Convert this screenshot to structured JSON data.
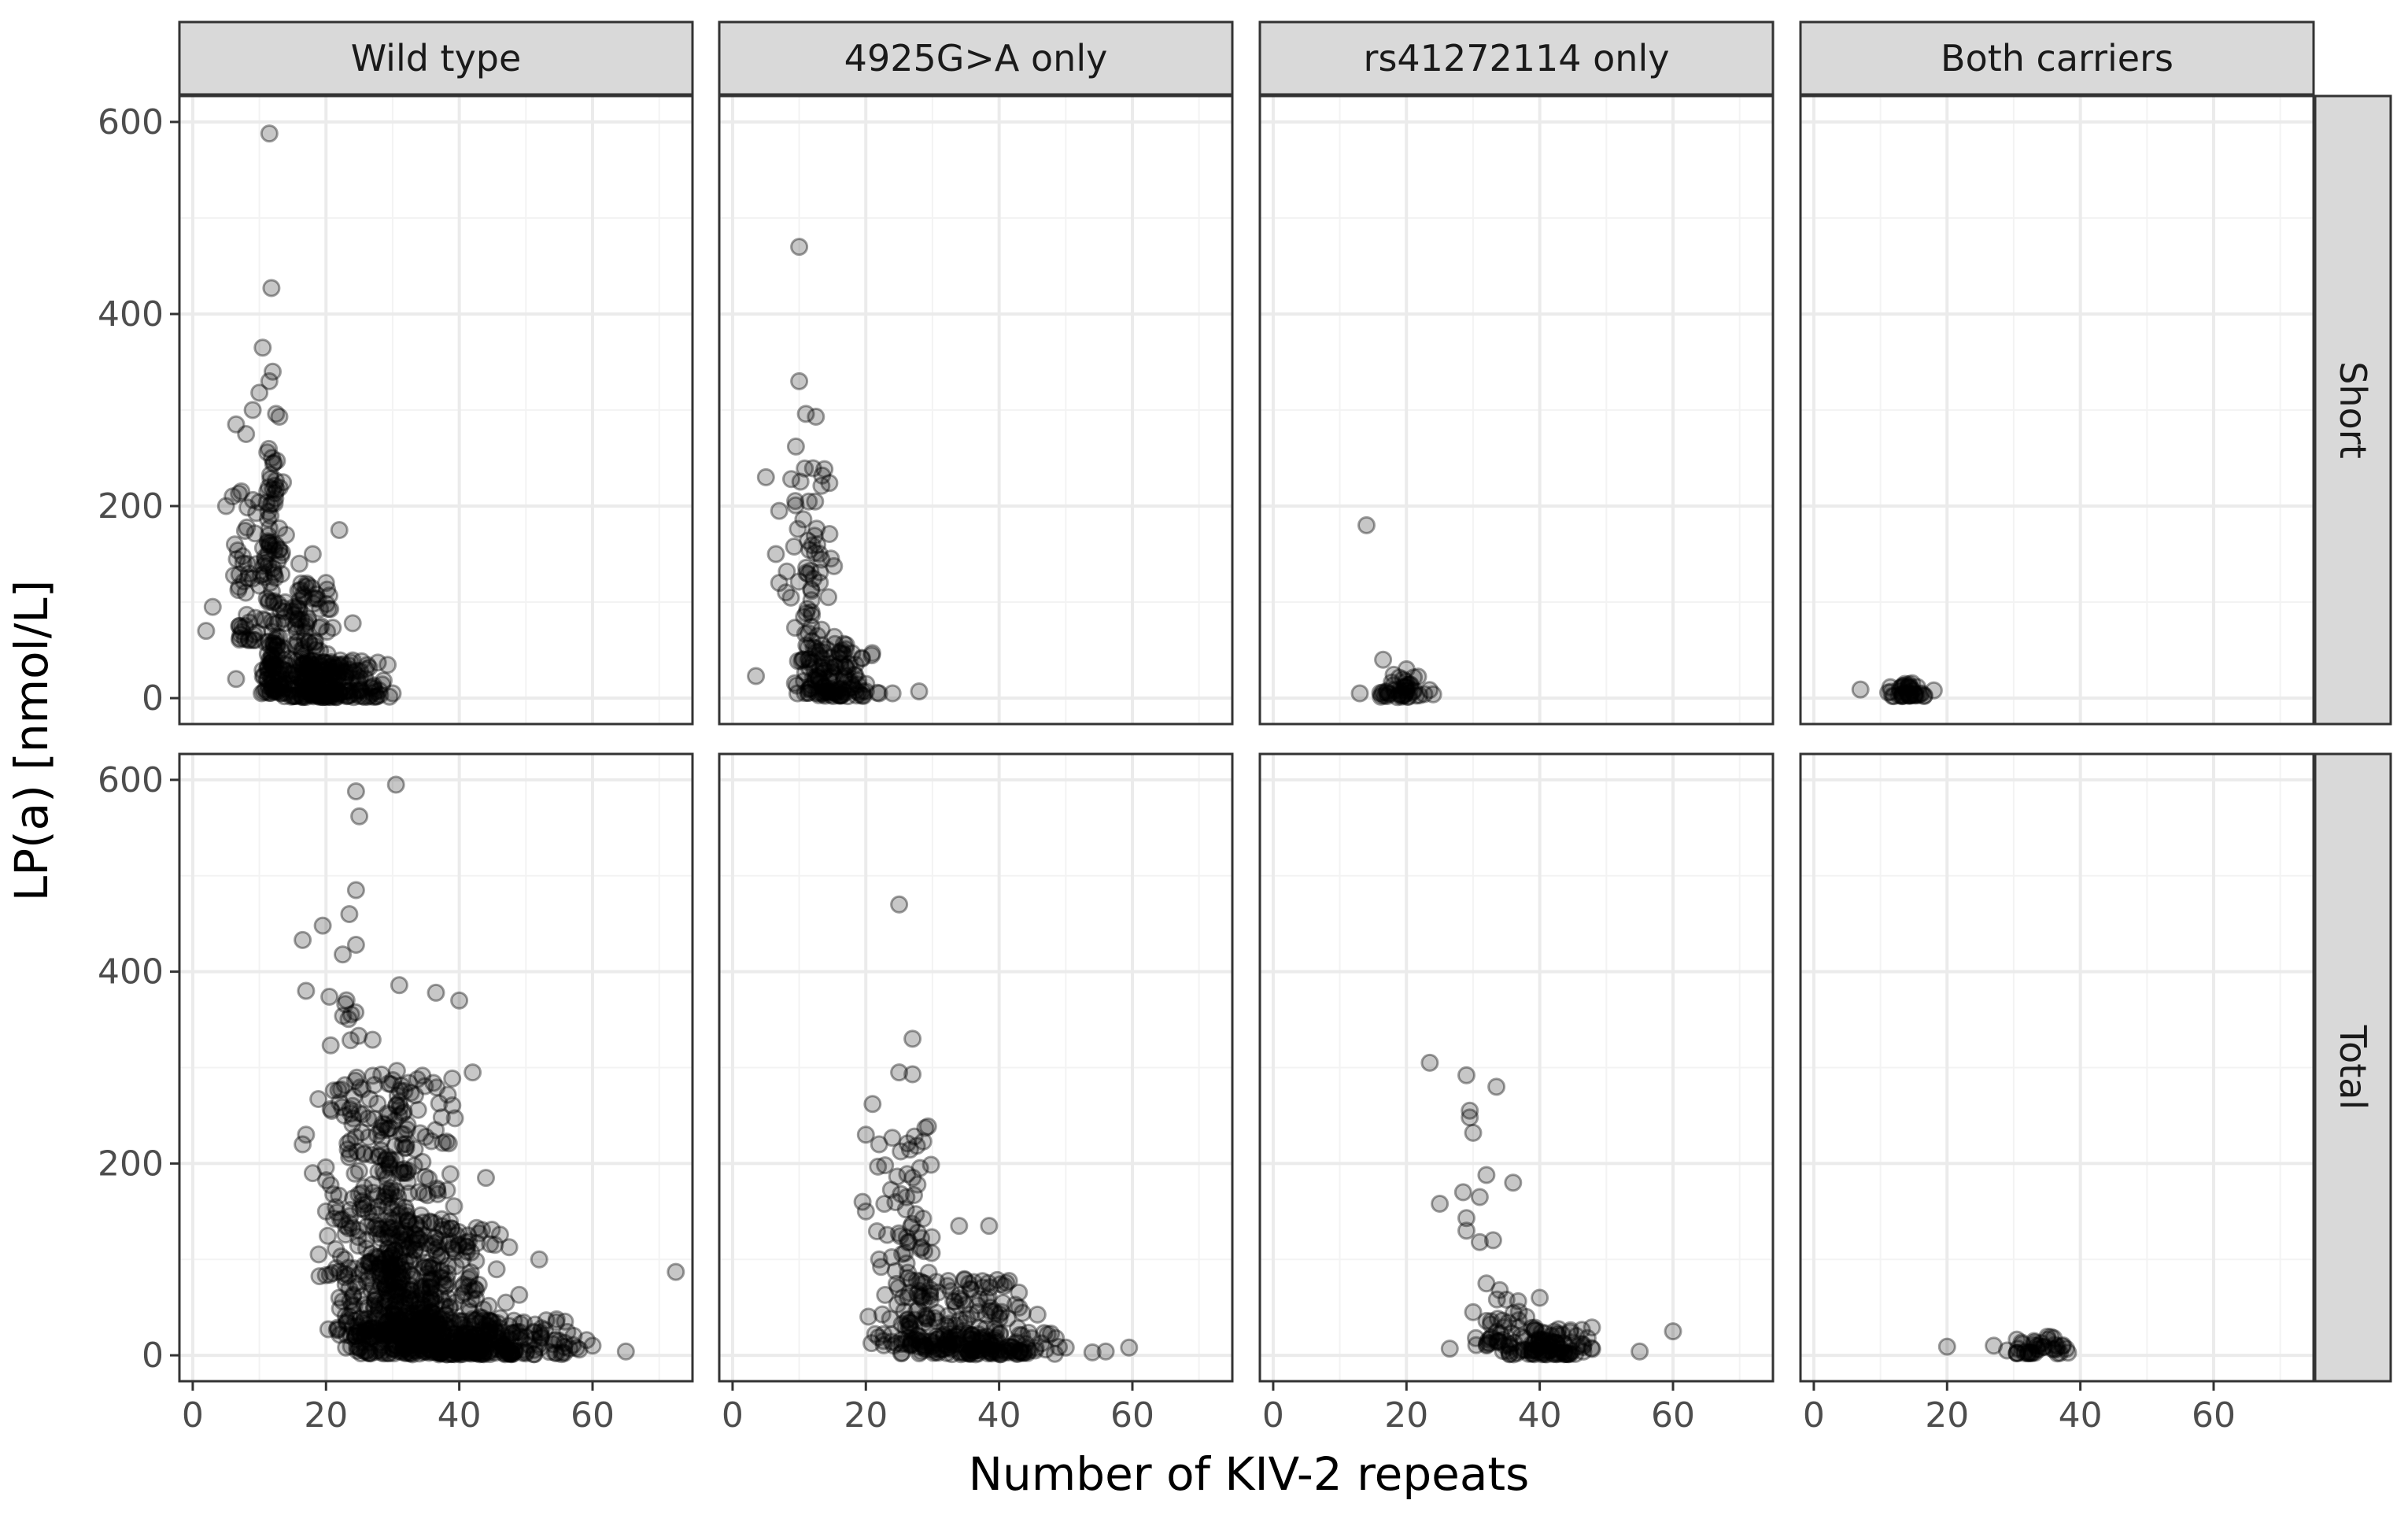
{
  "chart_data": {
    "type": "scatter",
    "xlabel": "Number of KIV-2 repeats",
    "ylabel": "LP(a) [nmol/L]",
    "xlim": [
      -2,
      75
    ],
    "ylim": [
      -27,
      627
    ],
    "x_ticks": [
      0,
      20,
      40,
      60
    ],
    "y_ticks": [
      0,
      200,
      400,
      600
    ],
    "x_tick_labels": [
      "0",
      "20",
      "40",
      "60"
    ],
    "y_tick_labels": [
      "0",
      "200",
      "400",
      "600"
    ],
    "grid": true,
    "point_color": "#000000",
    "point_alpha": 0.25,
    "columns": [
      "Wild type",
      "4925G>A only",
      "rs41272114 only",
      "Both carriers"
    ],
    "rows": [
      "Short",
      "Total"
    ],
    "panels": [
      {
        "column": "Wild type",
        "row": "Short",
        "highlights": [
          [
            11.5,
            588
          ],
          [
            11.8,
            427
          ],
          [
            10.5,
            365
          ],
          [
            12,
            340
          ],
          [
            11.5,
            330
          ],
          [
            6.5,
            285
          ],
          [
            9,
            300
          ],
          [
            10,
            318
          ],
          [
            12.5,
            296
          ],
          [
            13,
            293
          ],
          [
            8,
            275
          ],
          [
            6,
            210
          ],
          [
            5,
            200
          ],
          [
            3,
            95
          ],
          [
            2,
            70
          ],
          [
            6.5,
            20
          ],
          [
            22,
            175
          ],
          [
            18,
            150
          ],
          [
            20,
            120
          ],
          [
            14,
            170
          ],
          [
            16,
            140
          ],
          [
            24,
            78
          ],
          [
            26,
            30
          ],
          [
            28,
            8
          ],
          [
            30,
            5
          ],
          [
            27,
            5
          ]
        ],
        "clusters": [
          {
            "x": [
              10,
              14
            ],
            "y": [
              5,
              260
            ],
            "n": 140
          },
          {
            "x": [
              5,
              11
            ],
            "y": [
              60,
              220
            ],
            "n": 45
          },
          {
            "x": [
              12,
              22
            ],
            "y": [
              2,
              120
            ],
            "n": 150
          },
          {
            "x": [
              14,
              30
            ],
            "y": [
              1,
              40
            ],
            "n": 150
          }
        ]
      },
      {
        "column": "4925G>A only",
        "row": "Short",
        "highlights": [
          [
            10,
            470
          ],
          [
            10,
            330
          ],
          [
            11,
            296
          ],
          [
            12.5,
            293
          ],
          [
            9.5,
            262
          ],
          [
            5,
            230
          ],
          [
            7,
            195
          ],
          [
            6.5,
            150
          ],
          [
            7,
            120
          ],
          [
            8,
            110
          ],
          [
            3.5,
            23
          ],
          [
            22,
            5
          ],
          [
            24,
            5
          ],
          [
            28,
            7
          ],
          [
            20,
            7
          ]
        ],
        "clusters": [
          {
            "x": [
              8,
              16
            ],
            "y": [
              5,
              240
            ],
            "n": 95
          },
          {
            "x": [
              10,
              22
            ],
            "y": [
              2,
              60
            ],
            "n": 90
          }
        ]
      },
      {
        "column": "rs41272114 only",
        "row": "Short",
        "highlights": [
          [
            14,
            180
          ],
          [
            16.5,
            40
          ],
          [
            20,
            30
          ],
          [
            13,
            5
          ],
          [
            24,
            4
          ]
        ],
        "clusters": [
          {
            "x": [
              15,
              24
            ],
            "y": [
              1,
              25
            ],
            "n": 45
          }
        ]
      },
      {
        "column": "Both carriers",
        "row": "Short",
        "highlights": [
          [
            7,
            9
          ],
          [
            18,
            8
          ]
        ],
        "clusters": [
          {
            "x": [
              11,
              17
            ],
            "y": [
              2,
              20
            ],
            "n": 40
          }
        ]
      },
      {
        "column": "Wild type",
        "row": "Total",
        "highlights": [
          [
            24.5,
            588
          ],
          [
            30.5,
            595
          ],
          [
            25,
            562
          ],
          [
            24.5,
            485
          ],
          [
            23.5,
            460
          ],
          [
            19.5,
            448
          ],
          [
            16.5,
            433
          ],
          [
            24.5,
            428
          ],
          [
            22.5,
            418
          ],
          [
            31,
            386
          ],
          [
            36.5,
            378
          ],
          [
            17,
            380
          ],
          [
            16.5,
            220
          ],
          [
            17,
            230
          ],
          [
            18,
            190
          ],
          [
            20,
            150
          ],
          [
            22,
            60
          ],
          [
            23,
            8
          ],
          [
            72.5,
            87
          ],
          [
            65,
            4
          ],
          [
            52,
            100
          ],
          [
            49,
            63
          ],
          [
            47,
            55
          ],
          [
            44,
            185
          ],
          [
            42,
            295
          ],
          [
            45,
            35
          ],
          [
            55,
            15
          ],
          [
            60,
            10
          ],
          [
            58,
            6
          ],
          [
            40,
            370
          ]
        ],
        "clusters": [
          {
            "x": [
              20,
              40
            ],
            "y": [
              20,
              300
            ],
            "n": 420
          },
          {
            "x": [
              22,
              48
            ],
            "y": [
              2,
              140
            ],
            "n": 380
          },
          {
            "x": [
              28,
              60
            ],
            "y": [
              1,
              40
            ],
            "n": 220
          },
          {
            "x": [
              17,
              30
            ],
            "y": [
              80,
              380
            ],
            "n": 70
          }
        ]
      },
      {
        "column": "4925G>A only",
        "row": "Total",
        "highlights": [
          [
            25,
            470
          ],
          [
            27,
            330
          ],
          [
            25,
            295
          ],
          [
            27,
            293
          ],
          [
            21,
            262
          ],
          [
            20,
            230
          ],
          [
            22,
            220
          ],
          [
            19.5,
            160
          ],
          [
            20,
            150
          ],
          [
            22,
            100
          ],
          [
            38.5,
            135
          ],
          [
            34,
            135
          ],
          [
            54,
            3
          ],
          [
            56,
            4
          ],
          [
            59.5,
            8
          ],
          [
            50,
            8
          ],
          [
            47,
            6
          ],
          [
            44,
            12
          ]
        ],
        "clusters": [
          {
            "x": [
              20,
              32
            ],
            "y": [
              10,
              240
            ],
            "n": 110
          },
          {
            "x": [
              24,
              46
            ],
            "y": [
              2,
              80
            ],
            "n": 170
          },
          {
            "x": [
              30,
              50
            ],
            "y": [
              1,
              25
            ],
            "n": 60
          }
        ]
      },
      {
        "column": "rs41272114 only",
        "row": "Total",
        "highlights": [
          [
            23.5,
            305
          ],
          [
            29,
            292
          ],
          [
            29.5,
            255
          ],
          [
            29.5,
            248
          ],
          [
            30,
            232
          ],
          [
            33.5,
            280
          ],
          [
            25,
            158
          ],
          [
            28.5,
            170
          ],
          [
            31,
            165
          ],
          [
            32,
            188
          ],
          [
            36,
            180
          ],
          [
            29,
            143
          ],
          [
            29,
            130
          ],
          [
            31,
            118
          ],
          [
            33,
            120
          ],
          [
            32,
            75
          ],
          [
            34,
            68
          ],
          [
            35,
            58
          ],
          [
            30,
            45
          ],
          [
            60,
            25
          ],
          [
            55,
            4
          ],
          [
            26.5,
            7
          ],
          [
            40,
            60
          ],
          [
            38,
            40
          ]
        ],
        "clusters": [
          {
            "x": [
              32,
              50
            ],
            "y": [
              1,
              30
            ],
            "n": 110
          },
          {
            "x": [
              30,
              38
            ],
            "y": [
              10,
              60
            ],
            "n": 25
          }
        ]
      },
      {
        "column": "Both carriers",
        "row": "Total",
        "highlights": [
          [
            20,
            9
          ],
          [
            27,
            10
          ],
          [
            29,
            5
          ],
          [
            36,
            18
          ]
        ],
        "clusters": [
          {
            "x": [
              29,
              39
            ],
            "y": [
              2,
              20
            ],
            "n": 40
          }
        ]
      }
    ]
  }
}
